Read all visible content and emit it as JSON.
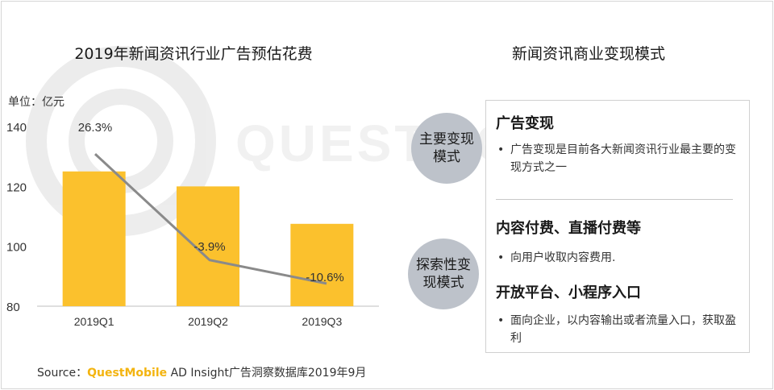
{
  "left_title": "2019年新闻资讯行业广告预估花费",
  "unit_label": "单位：亿元",
  "chart_data": {
    "type": "bar",
    "title": "2019年新闻资讯行业广告预估花费",
    "xlabel": "",
    "ylabel": "单位：亿元",
    "categories": [
      "2019Q1",
      "2019Q2",
      "2019Q3"
    ],
    "values": [
      125,
      120,
      107.5
    ],
    "ylim": [
      80,
      140
    ],
    "yticks": [
      80,
      100,
      120,
      140
    ],
    "bar_color": "#fbc12d",
    "growth_line": {
      "type": "line",
      "color": "#8a8a8a",
      "labels": [
        "26.3%",
        "-3.9%",
        "-10.6%"
      ],
      "values": [
        26.3,
        -3.9,
        -10.6
      ]
    },
    "grid": false,
    "legend": "none"
  },
  "source": {
    "prefix": "Source：",
    "brand": "QuestMobile",
    "rest": " AD Insight广告洞察数据库2019年9月"
  },
  "right_title": "新闻资讯商业变现模式",
  "circles": {
    "main": "主要变现模式",
    "explore": "探索性变现模式"
  },
  "sections": [
    {
      "heading": "广告变现",
      "bullets": [
        "广告变现是目前各大新闻资讯行业最主要的变现方式之一"
      ]
    },
    {
      "heading": "内容付费、直播付费等",
      "bullets": [
        "向用户收取内容费用."
      ]
    },
    {
      "heading": "开放平台、小程序入口",
      "bullets": [
        "面向企业，以内容输出或者流量入口，获取盈利"
      ]
    }
  ],
  "watermark_text": "QUESTMOBILE",
  "colors": {
    "accent": "#fbc12d",
    "brand": "#f3b410",
    "circle": "#bdc2ca",
    "line": "#8a8a8a"
  }
}
